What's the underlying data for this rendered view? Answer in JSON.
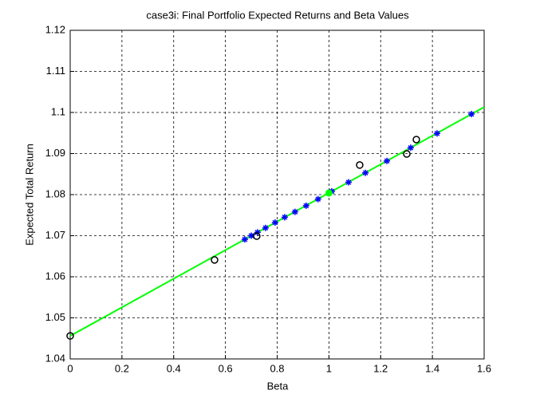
{
  "chart_data": {
    "type": "scatter",
    "title": "case3i: Final Portfolio Expected Returns and Beta Values",
    "xlabel": "Beta",
    "ylabel": "Expected Total Return",
    "xlim": [
      0,
      1.6
    ],
    "xticks": [
      0,
      0.2,
      0.4,
      0.6,
      0.8,
      1,
      1.2,
      1.4,
      1.6
    ],
    "ylim": [
      1.04,
      1.12
    ],
    "yticks": [
      1.04,
      1.05,
      1.06,
      1.07,
      1.08,
      1.09,
      1.1,
      1.11,
      1.12
    ],
    "grid": true,
    "series": [
      {
        "marker": "line",
        "color": "#00ff00",
        "x": [
          0,
          1.6
        ],
        "values": [
          1.0456,
          1.1013
        ]
      },
      {
        "marker": "star",
        "color": "#0000ff",
        "x": [
          0.675,
          0.7,
          0.724,
          0.755,
          0.792,
          0.829,
          0.869,
          0.912,
          0.958,
          1.011,
          1.076,
          1.141,
          1.224,
          1.316,
          1.418,
          1.551
        ],
        "values": [
          1.0691,
          1.07,
          1.0708,
          1.0719,
          1.0732,
          1.0745,
          1.0758,
          1.0773,
          1.0789,
          1.0808,
          1.083,
          1.0853,
          1.0882,
          1.0914,
          1.0949,
          1.0996
        ]
      },
      {
        "marker": "circle",
        "color": "#000000",
        "x": [
          0,
          0.558,
          0.721,
          1.119,
          1.301,
          1.338
        ],
        "values": [
          1.0456,
          1.0641,
          1.0699,
          1.0872,
          1.0899,
          1.0934
        ]
      },
      {
        "marker": "dot",
        "color": "#00ff00",
        "x": [
          1
        ],
        "values": [
          1.0804
        ]
      }
    ]
  }
}
